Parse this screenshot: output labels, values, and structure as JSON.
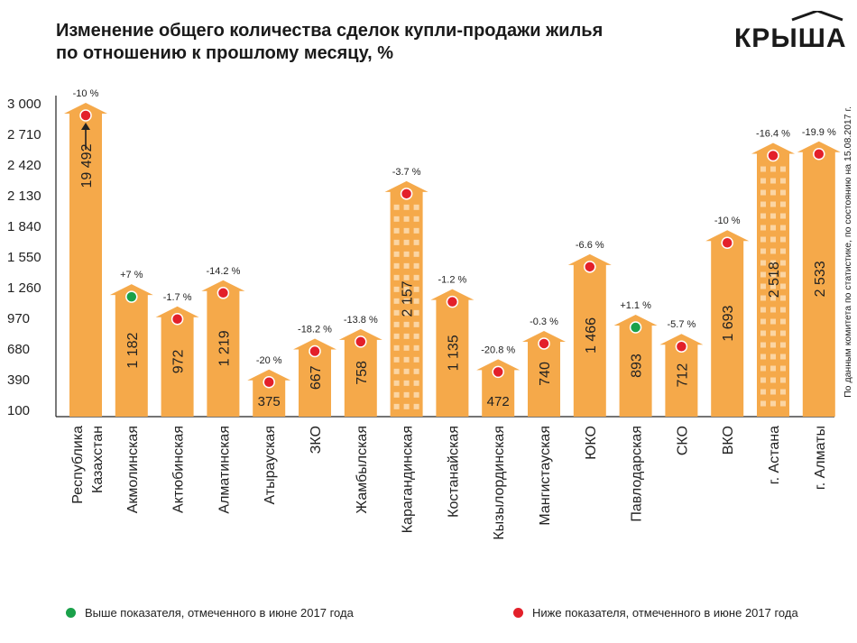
{
  "title_line1": "Изменение общего количества сделок купли-продажи жилья",
  "title_line2": "по отношению к прошлому месяцу, %",
  "logo_text": "КРЫША",
  "side_note": "По данным комитета по статистике, по состоянию на 15.08.2017 г.",
  "legend": {
    "above": {
      "label": "Выше показателя, отмеченного в июне 2017 года",
      "color": "#1aa14a"
    },
    "below": {
      "label": "Ниже показателя, отмеченного в июне 2017 года",
      "color": "#e3202a"
    }
  },
  "colors": {
    "bar": "#f5a94a",
    "bar_dark": "#e8922e",
    "window": "#fbd5a3",
    "axis": "#222222"
  },
  "chart_data": {
    "type": "bar",
    "title": "Изменение общего количества сделок купли-продажи жилья по отношению к прошлому месяцу, %",
    "ylim": [
      100,
      3000
    ],
    "yticks": [
      "3 000",
      "2 710",
      "2 420",
      "2 130",
      "1 840",
      "1 550",
      "1 260",
      "970",
      "680",
      "390",
      "100"
    ],
    "ytick_values": [
      3000,
      2710,
      2420,
      2130,
      1840,
      1550,
      1260,
      970,
      680,
      390,
      100
    ],
    "categories": [
      "Республика Казахстан",
      "Акмолинская",
      "Актюбинская",
      "Алматинская",
      "Атырауская",
      "ЗКО",
      "Жамбылская",
      "Карагандинская",
      "Костанайская",
      "Кызылординская",
      "Мангистауская",
      "ЮКО",
      "Павлодарская",
      "СКО",
      "ВКО",
      "г. Астана",
      "г. Алматы"
    ],
    "values": [
      19492,
      1182,
      972,
      1219,
      375,
      667,
      758,
      2157,
      1135,
      472,
      740,
      1466,
      893,
      712,
      1693,
      2518,
      2533
    ],
    "value_labels": [
      "19 492",
      "1 182",
      "972",
      "1 219",
      "375",
      "667",
      "758",
      "2 157",
      "1 135",
      "472",
      "740",
      "1 466",
      "893",
      "712",
      "1 693",
      "2 518",
      "2 533"
    ],
    "change_labels": [
      "-10 %",
      "+7 %",
      "-1.7 %",
      "-14.2 %",
      "-20 %",
      "-18.2 %",
      "-13.8 %",
      "-3.7 %",
      "-1.2 %",
      "-20.8 %",
      "-0.3 %",
      "-6.6 %",
      "+1.1 %",
      "-5.7 %",
      "-10 %",
      "-16.4 %",
      "-19.9 %"
    ],
    "status": [
      "below",
      "above",
      "below",
      "below",
      "below",
      "below",
      "below",
      "below",
      "below",
      "below",
      "below",
      "below",
      "above",
      "below",
      "below",
      "below",
      "below"
    ],
    "windows": [
      false,
      false,
      false,
      false,
      false,
      false,
      false,
      true,
      false,
      false,
      false,
      false,
      false,
      false,
      false,
      true,
      false
    ],
    "clipped_first": true
  }
}
